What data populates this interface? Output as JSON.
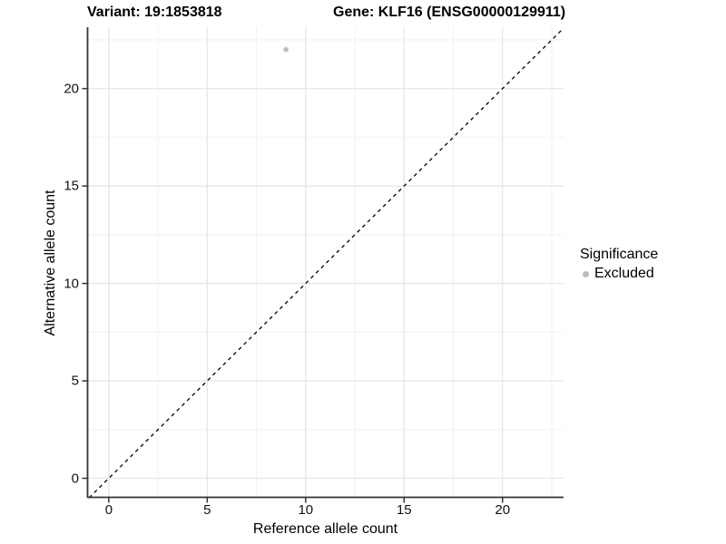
{
  "title": {
    "variant": "Variant: 19:1853818",
    "gene": "Gene: KLF16 (ENSG00000129911)"
  },
  "chart_data": {
    "type": "scatter",
    "title": "Variant: 19:1853818   Gene: KLF16 (ENSG00000129911)",
    "xlabel": "Reference allele count",
    "ylabel": "Alternative allele count",
    "xlim": [
      -1.1,
      23.1
    ],
    "ylim": [
      -1.0,
      23.15
    ],
    "x_ticks": [
      0,
      5,
      10,
      15,
      20
    ],
    "y_ticks": [
      0,
      5,
      10,
      15,
      20
    ],
    "x_minor_ticks": [
      2.5,
      7.5,
      12.5,
      17.5,
      22.5
    ],
    "y_minor_ticks": [
      2.5,
      7.5,
      12.5,
      17.5,
      22.5
    ],
    "grid": true,
    "series": [
      {
        "name": "Excluded",
        "marker": "circle",
        "color": "#bdbdbd",
        "points": [
          {
            "x": 9,
            "y": 22
          }
        ]
      }
    ],
    "reference_line": {
      "type": "identity",
      "slope": 1,
      "intercept": 0,
      "style": "dashed",
      "color": "#000000"
    },
    "legend": {
      "title": "Significance",
      "position": "right",
      "entries": [
        {
          "label": "Excluded",
          "marker": "circle",
          "color": "#bdbdbd"
        }
      ]
    }
  },
  "colors": {
    "background": "#ffffff",
    "axis_line": "#333333",
    "tick_mark": "#333333",
    "grid_major": "#e4e4e4",
    "grid_minor": "#f2f2f2",
    "point": "#bdbdbd",
    "text": "#000000"
  }
}
